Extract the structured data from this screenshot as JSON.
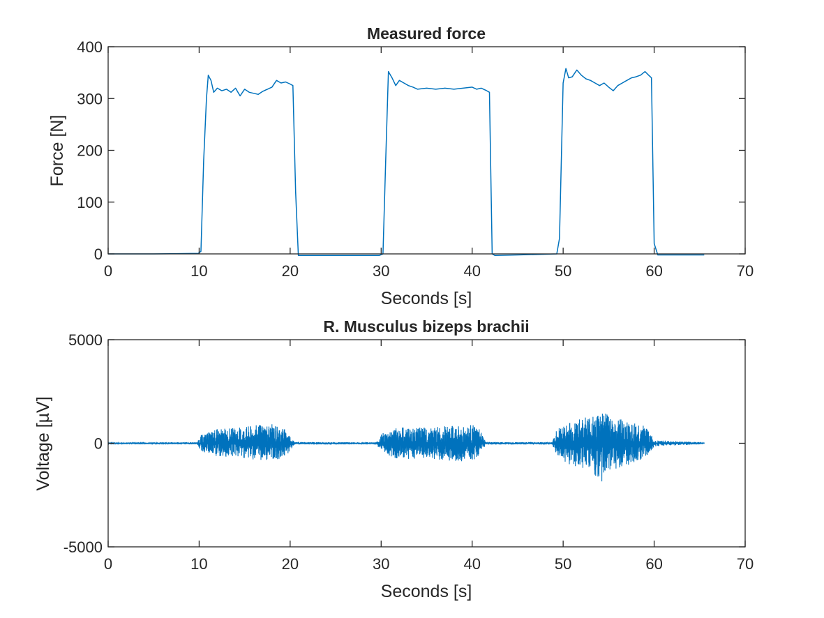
{
  "chart_data": [
    {
      "type": "line",
      "title": "Measured force",
      "xlabel": "Seconds [s]",
      "ylabel": "Force [N]",
      "xlim": [
        0,
        70
      ],
      "ylim": [
        0,
        400
      ],
      "xticks": [
        "0",
        "10",
        "20",
        "30",
        "40",
        "50",
        "60",
        "70"
      ],
      "yticks": [
        "0",
        "100",
        "200",
        "300",
        "400"
      ],
      "grid": false,
      "line_color": "#0072BD",
      "series": [
        {
          "x": [
            0,
            5,
            9.9,
            10.2,
            10.5,
            10.8,
            11.0,
            11.3,
            11.6,
            12.0,
            12.5,
            13.0,
            13.5,
            14.0,
            14.5,
            15.0,
            15.5,
            16.0,
            16.5,
            17.0,
            17.5,
            18.0,
            18.5,
            19.0,
            19.5,
            20.0,
            20.3,
            20.6,
            20.9,
            22,
            25,
            29.8,
            30.2,
            30.5,
            30.8,
            31.2,
            31.6,
            32.0,
            32.5,
            33.0,
            33.5,
            34.0,
            35.0,
            36.0,
            37.0,
            38.0,
            39.0,
            40.0,
            40.5,
            41.0,
            41.5,
            41.9,
            42.2,
            42.5,
            45,
            49.3,
            49.6,
            50.0,
            50.3,
            50.6,
            51.0,
            51.5,
            52.0,
            52.5,
            53.0,
            53.5,
            54.0,
            54.5,
            55.0,
            55.5,
            56.0,
            56.5,
            57.0,
            57.5,
            58.0,
            58.5,
            59.0,
            59.4,
            59.7,
            60.0,
            60.4,
            62,
            65.5
          ],
          "y": [
            0,
            0,
            1,
            5,
            180,
            300,
            345,
            335,
            312,
            320,
            315,
            318,
            312,
            320,
            305,
            318,
            312,
            310,
            308,
            314,
            318,
            322,
            335,
            330,
            332,
            328,
            325,
            120,
            -3,
            -3,
            -3,
            -3,
            0,
            180,
            352,
            340,
            325,
            335,
            330,
            325,
            322,
            318,
            320,
            318,
            320,
            318,
            320,
            322,
            318,
            320,
            316,
            312,
            0,
            -3,
            -2,
            0,
            30,
            330,
            358,
            340,
            342,
            355,
            345,
            338,
            335,
            330,
            325,
            330,
            322,
            315,
            325,
            330,
            335,
            340,
            342,
            345,
            352,
            345,
            340,
            20,
            -2,
            -2,
            -2
          ]
        }
      ]
    },
    {
      "type": "line",
      "title": "R. Musculus bizeps brachii",
      "xlabel": "Seconds [s]",
      "ylabel": "Voltage [µV]",
      "xlim": [
        0,
        70
      ],
      "ylim": [
        -5000,
        5000
      ],
      "xticks": [
        "0",
        "10",
        "20",
        "30",
        "40",
        "50",
        "60",
        "70"
      ],
      "yticks": [
        "-5000",
        "0",
        "5000"
      ],
      "grid": false,
      "line_color": "#0072BD",
      "series": [
        {
          "x": [
            0,
            9.8,
            10.2,
            12,
            14,
            16,
            17,
            18.5,
            19.5,
            20.5,
            29.5,
            30.1,
            32,
            34,
            36,
            38,
            40,
            40.8,
            41.5,
            48.8,
            49.3,
            51,
            53,
            54.2,
            55,
            56,
            57.5,
            59.2,
            60,
            65.5
          ],
          "envelope_max": [
            40,
            50,
            400,
            700,
            750,
            850,
            950,
            900,
            700,
            60,
            50,
            500,
            800,
            750,
            800,
            850,
            900,
            700,
            60,
            60,
            700,
            1100,
            1300,
            1600,
            1400,
            1200,
            1000,
            800,
            150,
            40
          ],
          "envelope_min": [
            -40,
            -50,
            -400,
            -700,
            -650,
            -800,
            -850,
            -800,
            -650,
            -60,
            -50,
            -500,
            -800,
            -750,
            -800,
            -850,
            -900,
            -600,
            -60,
            -60,
            -700,
            -1100,
            -1300,
            -1900,
            -1400,
            -1200,
            -1000,
            -700,
            -150,
            -40
          ]
        }
      ]
    }
  ]
}
